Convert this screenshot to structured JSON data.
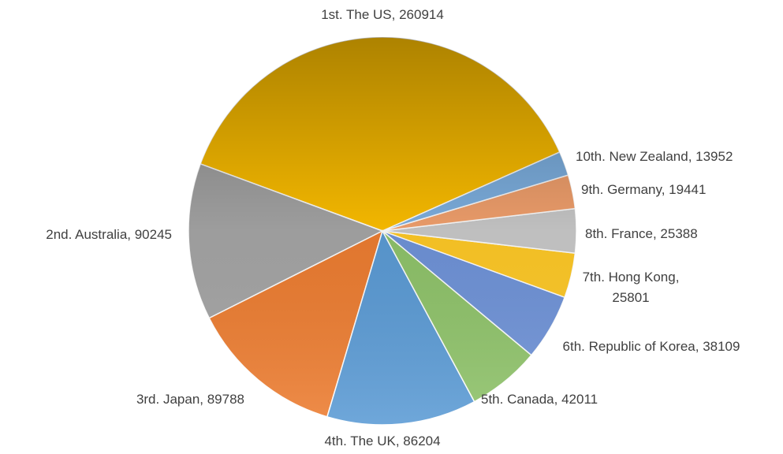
{
  "chart_data": {
    "type": "pie",
    "values": [
      260914,
      90245,
      89788,
      86204,
      42011,
      38109,
      25801,
      25388,
      19441,
      13952
    ],
    "value_labels": [
      "1st. The US, 260914",
      "2nd. Australia, 90245",
      "3rd. Japan, 89788",
      "4th. The UK, 86204",
      "5th. Canada, 42011",
      "6th. Republic of Korea, 38109",
      "7th. Hong Kong, 25801",
      "8th. France, 25388",
      "9th. Germany, 19441",
      "10th. New Zealand, 13952"
    ],
    "colors": [
      "#ffc000",
      "#a5a5a5",
      "#ed7d31",
      "#5b9bd5",
      "#8fc36a",
      "#6f93d8",
      "#ffc926",
      "#c9c9c9",
      "#f4a26e",
      "#7fb2e3"
    ]
  }
}
